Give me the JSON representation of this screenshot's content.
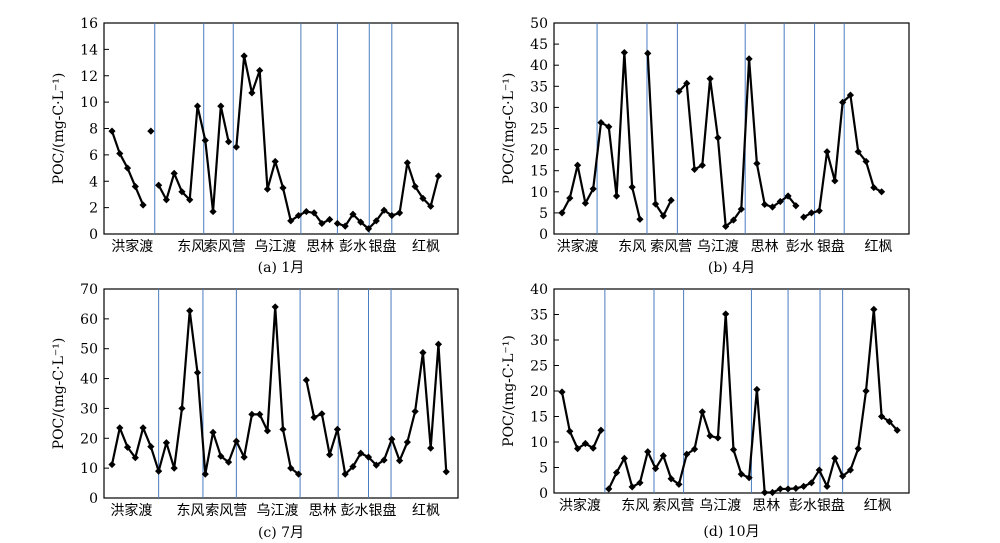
{
  "chart_data": [
    {
      "type": "line",
      "title": "(a) 1月",
      "ylabel": "POC/(mg-C·L⁻¹)",
      "ylim": [
        0,
        16
      ],
      "yticks": [
        0,
        2,
        4,
        6,
        8,
        10,
        12,
        14,
        16
      ],
      "x_count": 45,
      "segments": [
        {
          "start": 0,
          "values": [
            7.8,
            6.1,
            5.0,
            3.6,
            2.2
          ]
        },
        {
          "start": 5,
          "values": [
            7.8
          ]
        },
        {
          "start": 6,
          "values": [
            3.7,
            2.6,
            4.6,
            3.2,
            2.6,
            9.7,
            7.1,
            1.7,
            9.7,
            7.0
          ]
        },
        {
          "start": 16,
          "values": [
            6.6,
            13.5,
            10.7,
            12.4,
            3.4,
            5.5,
            3.5,
            1.0,
            1.4,
            1.7,
            1.6,
            0.8,
            1.1
          ]
        },
        {
          "start": 29,
          "values": [
            0.8,
            0.6,
            1.5,
            0.9,
            0.4,
            1.0,
            1.8,
            1.4,
            1.6,
            5.4,
            3.6,
            2.7,
            2.1,
            4.4
          ]
        }
      ],
      "dividers_after_index": [
        5.5,
        11.8,
        15.6,
        24.3,
        29.0,
        33.1,
        36.0
      ],
      "zones": [
        {
          "label": "洪家渡",
          "at": 2.6
        },
        {
          "label": "东风",
          "at": 10.2
        },
        {
          "label": "索风营",
          "at": 14.5
        },
        {
          "label": "乌江渡",
          "at": 21.0
        },
        {
          "label": "思林",
          "at": 26.8
        },
        {
          "label": "彭水",
          "at": 31.0
        },
        {
          "label": "银盘",
          "at": 34.8
        },
        {
          "label": "红枫",
          "at": 40.4
        }
      ]
    },
    {
      "type": "line",
      "title": "(b) 4月",
      "ylabel": "POC/(mg-C·L⁻¹)",
      "ylim": [
        0,
        50
      ],
      "yticks": [
        0,
        5,
        10,
        15,
        20,
        25,
        30,
        35,
        40,
        45,
        50
      ],
      "x_count": 45,
      "segments": [
        {
          "start": 0,
          "values": [
            5.0,
            8.5,
            16.3,
            7.3,
            10.7,
            26.4,
            25.4,
            9.0,
            43.0,
            11.1,
            3.5
          ]
        },
        {
          "start": 11,
          "values": [
            42.8,
            7.1,
            4.3,
            8.0
          ]
        },
        {
          "start": 15,
          "values": [
            33.8,
            35.7,
            15.3,
            16.3,
            36.8,
            22.8,
            1.8,
            3.3,
            5.9,
            41.5,
            16.7,
            7.0,
            6.4,
            7.7,
            9.0,
            6.7
          ]
        },
        {
          "start": 31,
          "values": [
            4.0,
            5.0,
            5.5,
            19.5,
            12.6,
            31.2,
            32.9,
            19.5,
            17.2,
            11.0,
            10.0
          ]
        }
      ],
      "dividers_after_index": [
        4.5,
        10.9,
        14.8,
        23.5,
        28.5,
        32.4,
        36.2
      ],
      "zones": [
        {
          "label": "洪家渡",
          "at": 2.0
        },
        {
          "label": "东风",
          "at": 9.0
        },
        {
          "label": "索风营",
          "at": 14.0
        },
        {
          "label": "乌江渡",
          "at": 20.0
        },
        {
          "label": "思林",
          "at": 26.0
        },
        {
          "label": "彭水",
          "at": 30.5
        },
        {
          "label": "银盘",
          "at": 34.5
        },
        {
          "label": "红枫",
          "at": 40.6
        }
      ]
    },
    {
      "type": "line",
      "title": "(c) 7月",
      "ylabel": "POC/(mg-C·L⁻¹)",
      "ylim": [
        0,
        70
      ],
      "yticks": [
        0,
        10,
        20,
        30,
        40,
        50,
        60,
        70
      ],
      "x_count": 45,
      "segments": [
        {
          "start": 0,
          "values": [
            11.2,
            23.5,
            17.0,
            13.5,
            23.5,
            17.2,
            9.0,
            18.5,
            10.0,
            30.0,
            62.7,
            42.0,
            8.0,
            22.0,
            14.0,
            12.0,
            19.0,
            13.7,
            28.0,
            28.0,
            22.5,
            64.0,
            23.0,
            10.0,
            8.0
          ]
        },
        {
          "start": 25,
          "values": [
            39.5,
            27.0,
            28.2,
            14.5,
            23.0,
            8.0,
            10.5,
            15.0,
            13.7,
            11.0,
            12.7,
            19.7,
            12.5,
            18.7,
            29.0,
            48.7,
            16.7,
            51.5,
            8.8
          ]
        }
      ],
      "dividers_after_index": [
        6.0,
        11.7,
        16.0,
        24.2,
        29.1,
        33.0,
        35.9
      ],
      "zones": [
        {
          "label": "洪家渡",
          "at": 2.5
        },
        {
          "label": "东风",
          "at": 10.1
        },
        {
          "label": "索风营",
          "at": 14.7
        },
        {
          "label": "乌江渡",
          "at": 21.3
        },
        {
          "label": "思林",
          "at": 27.1
        },
        {
          "label": "彭水",
          "at": 31.2
        },
        {
          "label": "银盘",
          "at": 34.8
        },
        {
          "label": "红枫",
          "at": 40.4
        }
      ]
    },
    {
      "type": "line",
      "title": "(d) 10月",
      "ylabel": "POC/(mg-C·L⁻¹)",
      "ylim": [
        0,
        40
      ],
      "yticks": [
        0,
        5,
        10,
        15,
        20,
        25,
        30,
        35,
        40
      ],
      "x_count": 45,
      "segments": [
        {
          "start": 0,
          "values": [
            19.8,
            12.1,
            8.7,
            9.7,
            8.8,
            12.3
          ]
        },
        {
          "start": 6,
          "values": [
            0.8,
            4.0,
            6.8,
            1.2,
            2.0,
            8.1,
            4.8,
            7.3,
            2.8,
            1.7,
            7.6,
            8.6,
            15.9,
            11.2,
            10.8,
            35.1,
            8.5,
            3.7,
            3.0,
            20.3,
            0.1,
            0.1,
            0.8,
            0.8,
            0.9,
            1.3,
            2.0,
            4.5,
            1.3,
            6.8,
            3.3,
            4.5,
            8.7,
            20.0,
            36.0,
            15.0,
            14.0,
            12.3
          ]
        }
      ],
      "dividers_after_index": [
        5.5,
        11.8,
        15.6,
        24.3,
        29.0,
        33.1,
        36.0
      ],
      "zones": [
        {
          "label": "洪家渡",
          "at": 2.3
        },
        {
          "label": "东风",
          "at": 9.4
        },
        {
          "label": "索风营",
          "at": 14.3
        },
        {
          "label": "乌江渡",
          "at": 20.3
        },
        {
          "label": "思林",
          "at": 26.2
        },
        {
          "label": "彭水",
          "at": 30.9
        },
        {
          "label": "银盘",
          "at": 34.5
        },
        {
          "label": "红枫",
          "at": 40.5
        }
      ]
    }
  ],
  "colors": {
    "line": "#000000",
    "divider": "#4a7cc0",
    "axis": "#000000"
  }
}
